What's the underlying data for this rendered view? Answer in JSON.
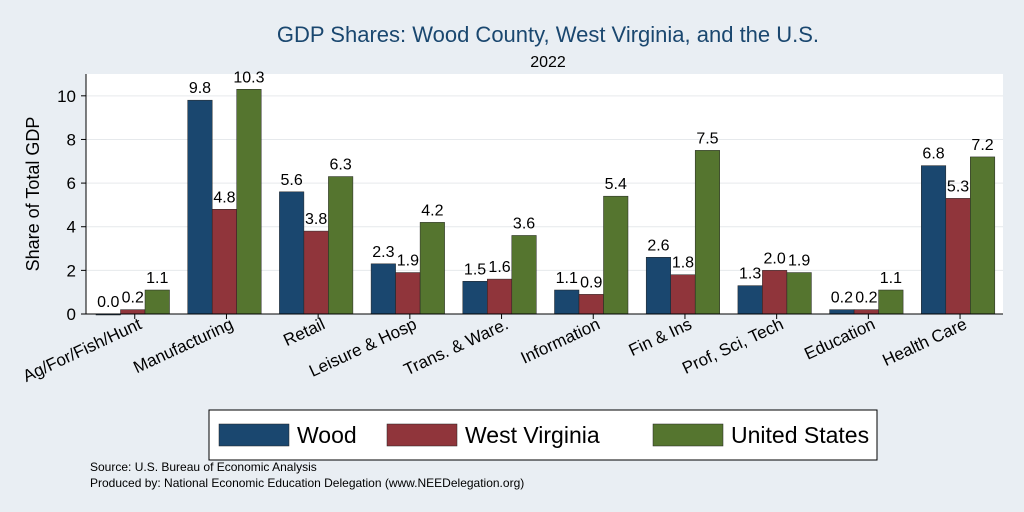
{
  "chart_data": {
    "type": "bar",
    "title": "GDP Shares: Wood County, West Virginia, and the U.S.",
    "subtitle": "2022",
    "ylabel": "Share of Total GDP",
    "xlabel": "",
    "ylim": [
      0,
      11
    ],
    "yticks": [
      0,
      2,
      4,
      6,
      8,
      10
    ],
    "grid": true,
    "legend_position": "bottom",
    "categories": [
      "Ag/For/Fish/Hunt",
      "Manufacturing",
      "Retail",
      "Leisure & Hosp",
      "Trans. & Ware.",
      "Information",
      "Fin & Ins",
      "Prof, Sci, Tech",
      "Education",
      "Health Care"
    ],
    "series": [
      {
        "name": "Wood",
        "color": "#1a476f",
        "values": [
          0.0,
          9.8,
          5.6,
          2.3,
          1.5,
          1.1,
          2.6,
          1.3,
          0.2,
          6.8
        ]
      },
      {
        "name": "West Virginia",
        "color": "#90353b",
        "values": [
          0.2,
          4.8,
          3.8,
          1.9,
          1.6,
          0.9,
          1.8,
          2.0,
          0.2,
          5.3
        ]
      },
      {
        "name": "United States",
        "color": "#55752f",
        "values": [
          1.1,
          10.3,
          6.3,
          4.2,
          3.6,
          5.4,
          7.5,
          1.9,
          1.1,
          7.2
        ]
      }
    ]
  },
  "notes": {
    "source": "Source: U.S. Bureau of Economic Analysis",
    "produced": "Produced by: National Economic Education Delegation (www.NEEDelegation.org)"
  }
}
